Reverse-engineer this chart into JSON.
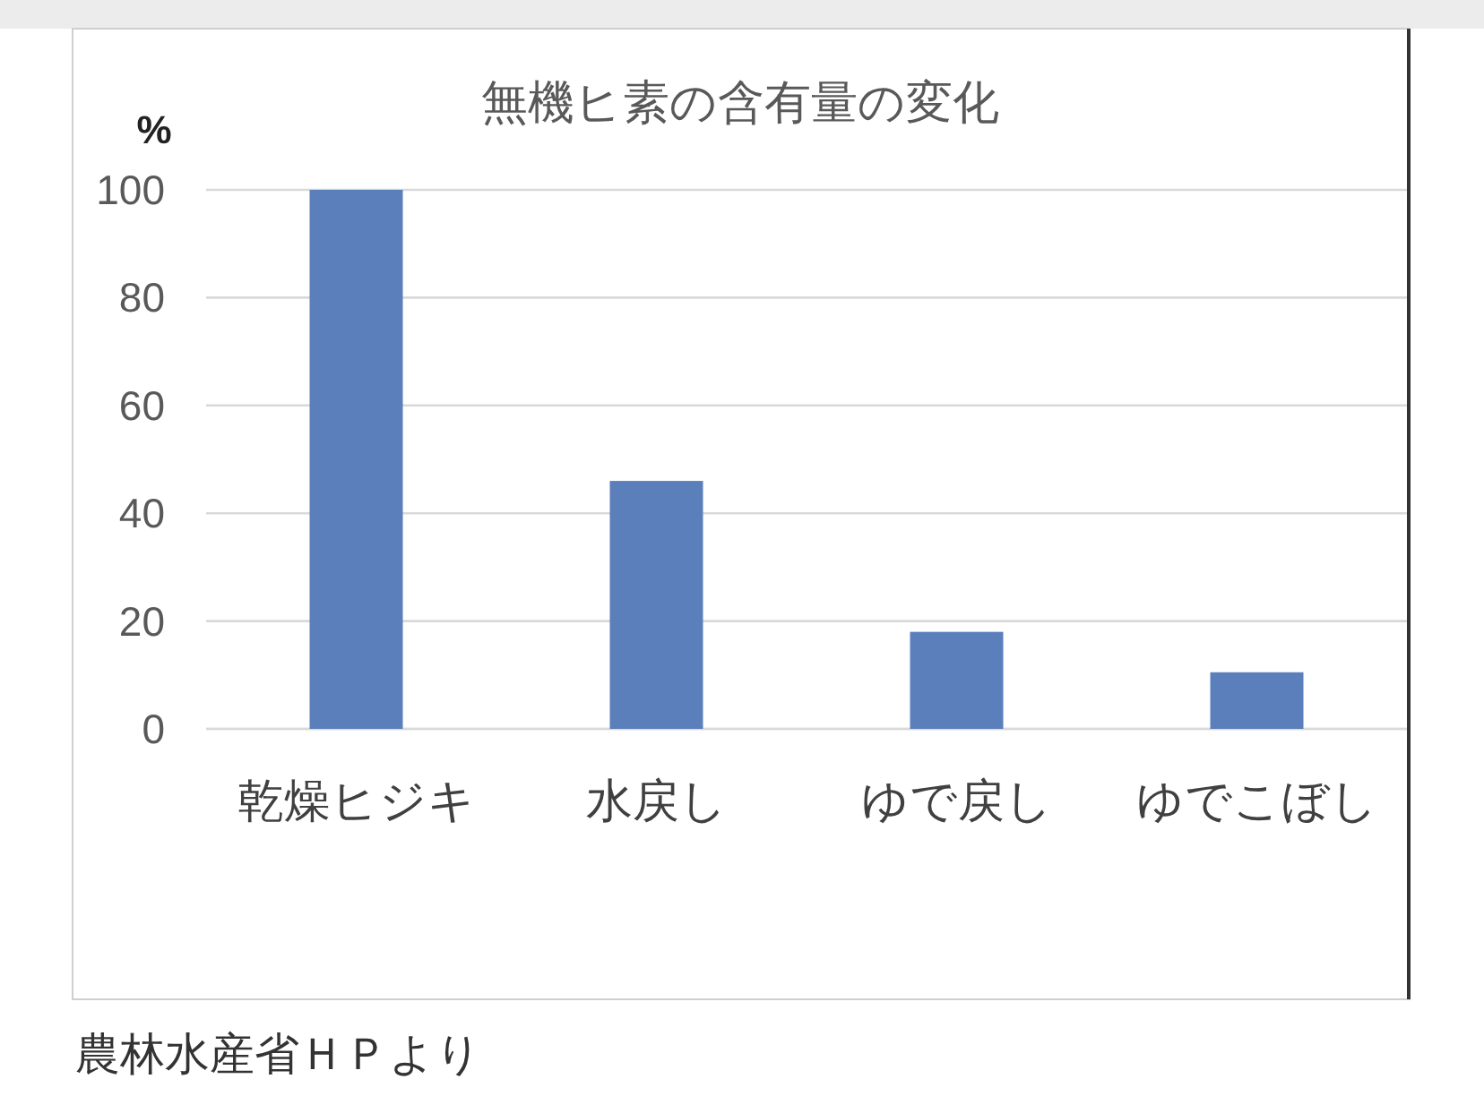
{
  "chart_data": {
    "type": "bar",
    "title": "無機ヒ素の含有量の変化",
    "ylabel": "%",
    "categories": [
      "乾燥ヒジキ",
      "水戻し",
      "ゆで戻し",
      "ゆでこぼし"
    ],
    "values": [
      100,
      46,
      18,
      10.5
    ],
    "color": "#5b7fbb",
    "ylim": [
      0,
      100
    ],
    "yticks": [
      0,
      20,
      40,
      60,
      80,
      100
    ],
    "grid": "y",
    "annotations": [
      "農林水産省ＨＰより"
    ]
  }
}
